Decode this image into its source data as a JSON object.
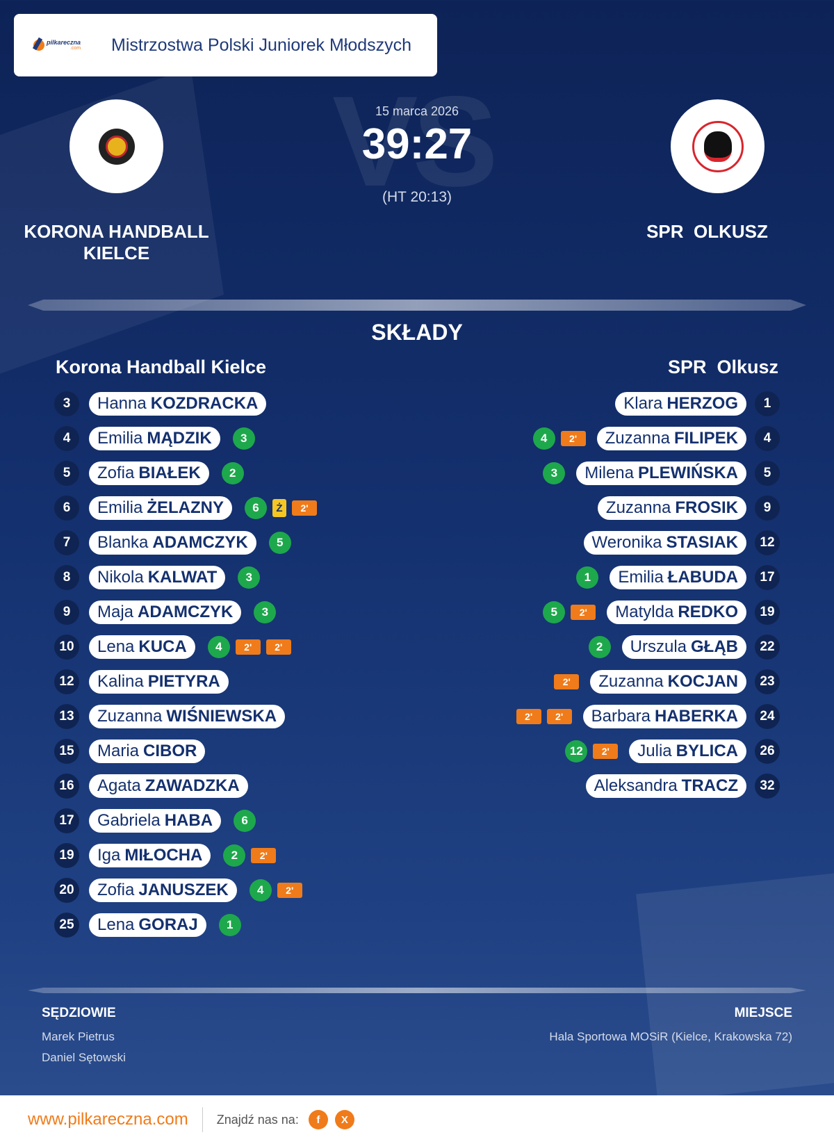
{
  "header": {
    "logo_name": "pilkareczna",
    "logo_suffix": ".com",
    "league": "Mistrzostwa Polski Juniorek Młodszych"
  },
  "match": {
    "date": "15 marca 2026",
    "score": "39:27",
    "halftime": "(HT 20:13)",
    "vs_text": "VS"
  },
  "home": {
    "display_name": "KORONA HANDBALL\nKIELCE",
    "roster_title": "Korona Handball Kielce"
  },
  "away": {
    "display_name": "SPR  OLKUSZ",
    "roster_title": "SPR  Olkusz"
  },
  "lineups_title": "SKŁADY",
  "home_players": [
    {
      "number": "3",
      "first": "Hanna",
      "last": "KOZDRACKA",
      "events": []
    },
    {
      "number": "4",
      "first": "Emilia",
      "last": "MĄDZIK",
      "events": [
        {
          "type": "goal",
          "text": "3"
        }
      ]
    },
    {
      "number": "5",
      "first": "Zofia",
      "last": "BIAŁEK",
      "events": [
        {
          "type": "goal",
          "text": "2"
        }
      ]
    },
    {
      "number": "6",
      "first": "Emilia",
      "last": "ŻELAZNY",
      "events": [
        {
          "type": "goal",
          "text": "6"
        },
        {
          "type": "yellow",
          "text": "Ż"
        },
        {
          "type": "susp",
          "text": "2'"
        }
      ]
    },
    {
      "number": "7",
      "first": "Blanka",
      "last": "ADAMCZYK",
      "events": [
        {
          "type": "goal",
          "text": "5"
        }
      ]
    },
    {
      "number": "8",
      "first": "Nikola",
      "last": "KALWAT",
      "events": [
        {
          "type": "goal",
          "text": "3"
        }
      ]
    },
    {
      "number": "9",
      "first": "Maja",
      "last": "ADAMCZYK",
      "events": [
        {
          "type": "goal",
          "text": "3"
        }
      ]
    },
    {
      "number": "10",
      "first": "Lena",
      "last": "KUCA",
      "events": [
        {
          "type": "goal",
          "text": "4"
        },
        {
          "type": "susp",
          "text": "2'"
        },
        {
          "type": "susp",
          "text": "2'"
        }
      ]
    },
    {
      "number": "12",
      "first": "Kalina",
      "last": "PIETYRA",
      "events": []
    },
    {
      "number": "13",
      "first": "Zuzanna",
      "last": "WIŚNIEWSKA",
      "events": []
    },
    {
      "number": "15",
      "first": "Maria",
      "last": "CIBOR",
      "events": []
    },
    {
      "number": "16",
      "first": "Agata",
      "last": "ZAWADZKA",
      "events": []
    },
    {
      "number": "17",
      "first": "Gabriela",
      "last": "HABA",
      "events": [
        {
          "type": "goal",
          "text": "6"
        }
      ]
    },
    {
      "number": "19",
      "first": "Iga",
      "last": "MIŁOCHA",
      "events": [
        {
          "type": "goal",
          "text": "2"
        },
        {
          "type": "susp",
          "text": "2'"
        }
      ]
    },
    {
      "number": "20",
      "first": "Zofia",
      "last": "JANUSZEK",
      "events": [
        {
          "type": "goal",
          "text": "4"
        },
        {
          "type": "susp",
          "text": "2'"
        }
      ]
    },
    {
      "number": "25",
      "first": "Lena",
      "last": "GORAJ",
      "events": [
        {
          "type": "goal",
          "text": "1"
        }
      ]
    }
  ],
  "away_players": [
    {
      "number": "1",
      "first": "Klara",
      "last": "HERZOG",
      "events": []
    },
    {
      "number": "4",
      "first": "Zuzanna",
      "last": "FILIPEK",
      "events": [
        {
          "type": "goal",
          "text": "4"
        },
        {
          "type": "susp",
          "text": "2'"
        }
      ]
    },
    {
      "number": "5",
      "first": "Milena",
      "last": "PLEWIŃSKA",
      "events": [
        {
          "type": "goal",
          "text": "3"
        }
      ]
    },
    {
      "number": "9",
      "first": "Zuzanna",
      "last": "FROSIK",
      "events": []
    },
    {
      "number": "12",
      "first": "Weronika",
      "last": "STASIAK",
      "events": []
    },
    {
      "number": "17",
      "first": "Emilia",
      "last": "ŁABUDA",
      "events": [
        {
          "type": "goal",
          "text": "1"
        }
      ]
    },
    {
      "number": "19",
      "first": "Matylda",
      "last": "REDKO",
      "events": [
        {
          "type": "goal",
          "text": "5"
        },
        {
          "type": "susp",
          "text": "2'"
        }
      ]
    },
    {
      "number": "22",
      "first": "Urszula",
      "last": "GŁĄB",
      "events": [
        {
          "type": "goal",
          "text": "2"
        }
      ]
    },
    {
      "number": "23",
      "first": "Zuzanna",
      "last": "KOCJAN",
      "events": [
        {
          "type": "susp",
          "text": "2'"
        }
      ]
    },
    {
      "number": "24",
      "first": "Barbara",
      "last": "HABERKA",
      "events": [
        {
          "type": "susp",
          "text": "2'"
        },
        {
          "type": "susp",
          "text": "2'"
        }
      ]
    },
    {
      "number": "26",
      "first": "Julia",
      "last": "BYLICA",
      "events": [
        {
          "type": "goal",
          "text": "12"
        },
        {
          "type": "susp",
          "text": "2'"
        }
      ]
    },
    {
      "number": "32",
      "first": "Aleksandra",
      "last": "TRACZ",
      "events": []
    }
  ],
  "officials": {
    "label": "SĘDZIOWIE",
    "names": [
      "Marek Pietrus",
      "Daniel Sętowski"
    ]
  },
  "venue": {
    "label": "MIEJSCE",
    "value": "Hala Sportowa MOSiR (Kielce, Krakowska 72)"
  },
  "footer": {
    "url": "www.pilkareczna.com",
    "find_us": "Znajdź nas na:",
    "social": [
      "f",
      "X"
    ]
  },
  "colors": {
    "accent": "#f07b1a",
    "goal": "#1ea84c",
    "yellow": "#f5c523",
    "navy": "#14306e"
  }
}
